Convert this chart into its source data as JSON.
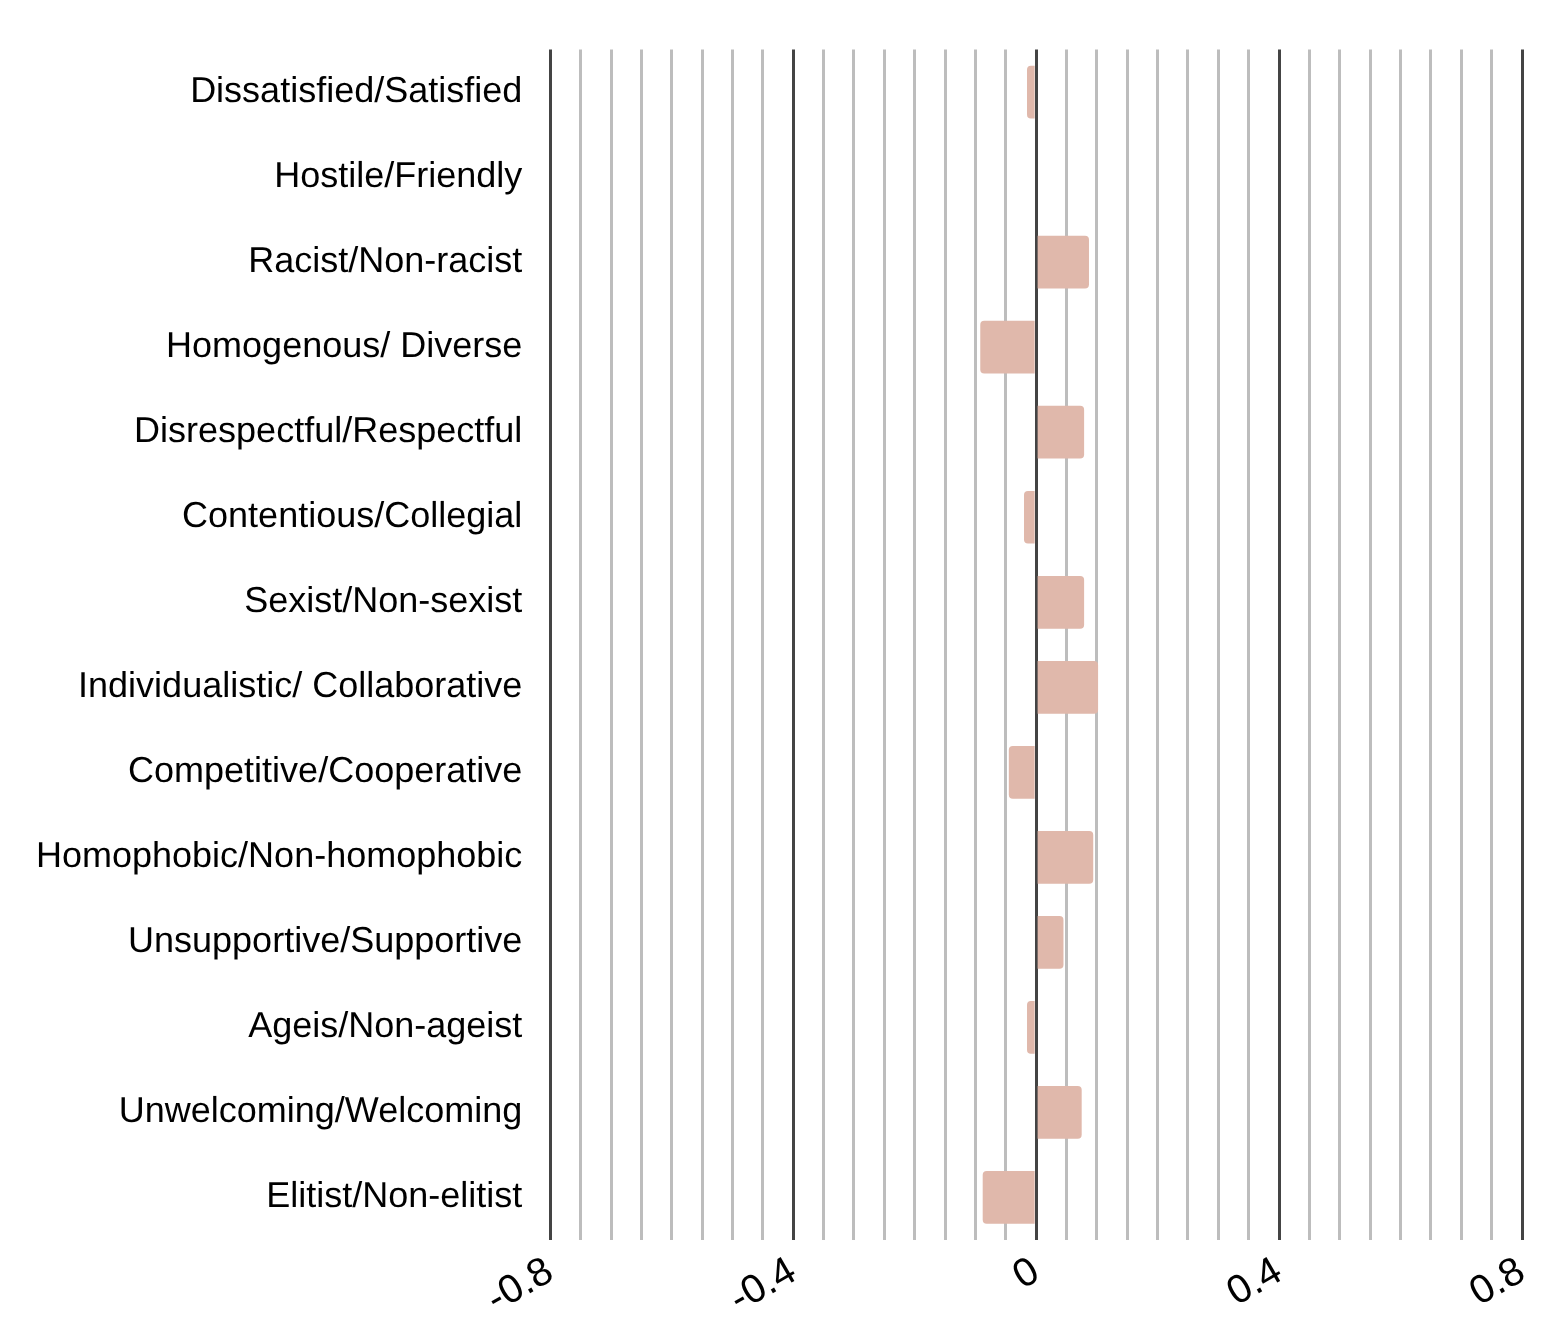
{
  "chart_data": {
    "type": "bar",
    "orientation": "horizontal",
    "categories": [
      "Dissatisfied/Satisfied",
      "Hostile/Friendly",
      "Racist/Non-racist",
      "Homogenous/ Diverse",
      "Disrespectful/Respectful",
      "Contentious/Collegial",
      "Sexist/Non-sexist",
      "Individualistic/ Collaborative",
      "Competitive/Cooperative",
      "Homophobic/Non-homophobic",
      "Unsupportive/Supportive",
      "Ageis/Non-ageist",
      "Unwelcoming/Welcoming",
      "Elitist/Non-elitist"
    ],
    "values": [
      -0.015,
      null,
      0.087,
      -0.092,
      0.079,
      -0.02,
      0.079,
      0.102,
      -0.045,
      0.094,
      0.045,
      -0.015,
      0.075,
      -0.088
    ],
    "color": "#e0b8ab",
    "xlim": [
      -0.8,
      0.8
    ],
    "xticks": [
      -0.8,
      {
        "value": -0.75,
        "label": null
      },
      {
        "value": -0.7,
        "label": null
      },
      {
        "value": -0.65,
        "label": null
      },
      {
        "value": -0.6,
        "label": null
      },
      {
        "value": -0.55,
        "label": null
      },
      {
        "value": -0.5,
        "label": null
      },
      {
        "value": -0.45,
        "label": null
      },
      -0.4,
      {
        "value": -0.35,
        "label": null
      },
      {
        "value": -0.3,
        "label": null
      },
      {
        "value": -0.25,
        "label": null
      },
      {
        "value": -0.2,
        "label": null
      },
      {
        "value": -0.15,
        "label": null
      },
      {
        "value": -0.1,
        "label": null
      },
      {
        "value": -0.05,
        "label": null
      },
      0,
      {
        "value": 0.05,
        "label": null
      },
      {
        "value": 0.1,
        "label": null
      },
      {
        "value": 0.15,
        "label": null
      },
      {
        "value": 0.2,
        "label": null
      },
      {
        "value": 0.25,
        "label": null
      },
      {
        "value": 0.3,
        "label": null
      },
      {
        "value": 0.35,
        "label": null
      },
      0.4,
      {
        "value": 0.45,
        "label": null
      },
      {
        "value": 0.5,
        "label": null
      },
      {
        "value": 0.55,
        "label": null
      },
      {
        "value": 0.6,
        "label": null
      },
      {
        "value": 0.65,
        "label": null
      },
      {
        "value": 0.7,
        "label": null
      },
      {
        "value": 0.75,
        "label": null
      },
      0.8
    ],
    "grid": "x",
    "legend": false
  }
}
